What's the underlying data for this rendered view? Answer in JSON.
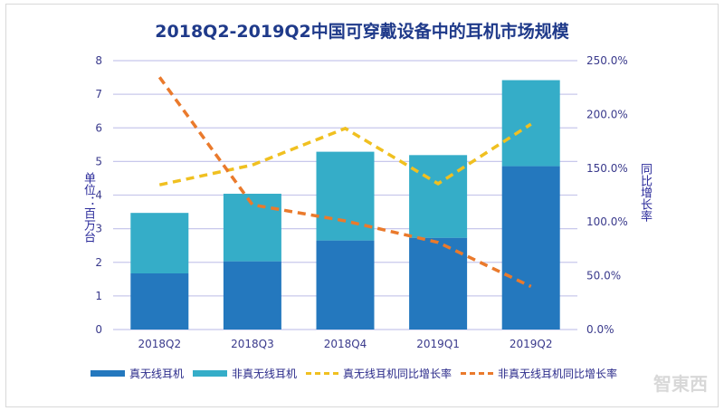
{
  "chart_data": {
    "type": "bar",
    "title": "2018Q2-2019Q2中国可穿戴设备中的耳机市场规模",
    "categories": [
      "2018Q2",
      "2018Q3",
      "2018Q4",
      "2019Q1",
      "2019Q2"
    ],
    "ylabel": "单位：百万台",
    "y2label": "同比增长率",
    "ylim": [
      0,
      8
    ],
    "y2lim": [
      0,
      250
    ],
    "yticks": [
      "0",
      "1",
      "2",
      "3",
      "4",
      "5",
      "6",
      "7",
      "8"
    ],
    "y2ticks": [
      "0.0%",
      "50.0%",
      "100.0%",
      "150.0%",
      "200.0%",
      "250.0%"
    ],
    "grid": true,
    "legend_position": "bottom",
    "series": [
      {
        "name": "真无线耳机",
        "type": "bar",
        "stacked": true,
        "color": "#2478be",
        "values": [
          1.67,
          2.03,
          2.65,
          2.73,
          4.86
        ]
      },
      {
        "name": "非真无线耳机",
        "type": "bar",
        "stacked": true,
        "color": "#35adc8",
        "values": [
          1.8,
          2.01,
          2.64,
          2.46,
          2.56
        ]
      },
      {
        "name": "真无线耳机同比增长率",
        "type": "line",
        "dashed": true,
        "axis": "right",
        "color": "#f0c020",
        "values": [
          134.5,
          153,
          187,
          135.6,
          191
        ]
      },
      {
        "name": "非真无线耳机同比增长率",
        "type": "line",
        "dashed": true,
        "axis": "right",
        "color": "#ea7a2c",
        "values": [
          234.6,
          116,
          101,
          81,
          40
        ]
      }
    ]
  },
  "watermark": "智东西"
}
